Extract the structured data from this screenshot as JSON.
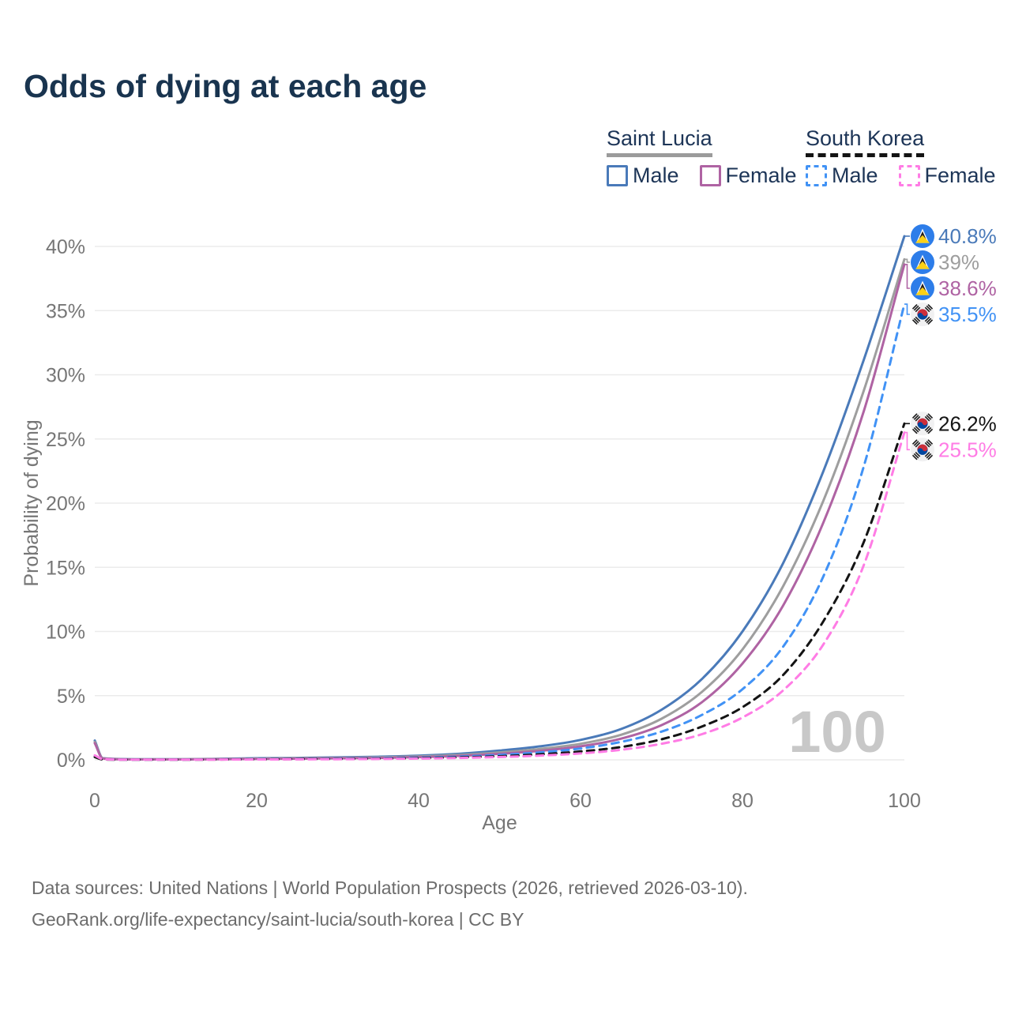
{
  "title": "Odds of dying at each age",
  "legend": {
    "groups": [
      {
        "label": "Saint Lucia",
        "line_style": "solid",
        "line_color": "#9b9b9b",
        "items": [
          {
            "label": "Male",
            "color": "#4a7ab9"
          },
          {
            "label": "Female",
            "color": "#af63a3"
          }
        ]
      },
      {
        "label": "South Korea",
        "line_style": "dashed",
        "line_color": "#141414",
        "items": [
          {
            "label": "Male",
            "color": "#4192f5"
          },
          {
            "label": "Female",
            "color": "#ff7ce5"
          }
        ]
      }
    ]
  },
  "chart_data": {
    "type": "line",
    "title": "Odds of dying at each age",
    "xlabel": "Age",
    "ylabel": "Probability of dying",
    "xlim": [
      0,
      100
    ],
    "ylim_percent": [
      0,
      40
    ],
    "x_ticks": [
      0,
      20,
      40,
      60,
      80,
      100
    ],
    "y_ticks_percent": [
      0,
      5,
      10,
      15,
      20,
      25,
      30,
      35,
      40
    ],
    "y_tick_labels": [
      "0%",
      "5%",
      "10%",
      "15%",
      "20%",
      "25%",
      "30%",
      "35%",
      "40%"
    ],
    "grid": "horizontal",
    "legend_position": "top-right",
    "watermark": "100",
    "series": [
      {
        "name": "Saint Lucia Male",
        "country": "Saint Lucia",
        "sex": "male",
        "color": "#4a7ab9",
        "dash": false,
        "flag": "saint-lucia",
        "end_label": "40.8%",
        "points": [
          [
            0,
            1.5
          ],
          [
            1,
            0.12
          ],
          [
            5,
            0.05
          ],
          [
            10,
            0.05
          ],
          [
            15,
            0.08
          ],
          [
            20,
            0.12
          ],
          [
            25,
            0.15
          ],
          [
            30,
            0.19
          ],
          [
            35,
            0.24
          ],
          [
            40,
            0.32
          ],
          [
            45,
            0.47
          ],
          [
            50,
            0.72
          ],
          [
            55,
            1.05
          ],
          [
            60,
            1.55
          ],
          [
            65,
            2.4
          ],
          [
            70,
            3.9
          ],
          [
            75,
            6.3
          ],
          [
            80,
            10.0
          ],
          [
            85,
            15.3
          ],
          [
            90,
            22.5
          ],
          [
            95,
            31.2
          ],
          [
            100,
            40.8
          ]
        ]
      },
      {
        "name": "Saint Lucia Both sexes",
        "country": "Saint Lucia",
        "sex": "both",
        "color": "#9e9e9e",
        "dash": false,
        "flag": "saint-lucia",
        "end_label": "39%",
        "points": [
          [
            0,
            1.4
          ],
          [
            1,
            0.11
          ],
          [
            5,
            0.04
          ],
          [
            10,
            0.04
          ],
          [
            15,
            0.06
          ],
          [
            20,
            0.09
          ],
          [
            25,
            0.12
          ],
          [
            30,
            0.15
          ],
          [
            35,
            0.19
          ],
          [
            40,
            0.26
          ],
          [
            45,
            0.38
          ],
          [
            50,
            0.58
          ],
          [
            55,
            0.85
          ],
          [
            60,
            1.25
          ],
          [
            65,
            1.95
          ],
          [
            70,
            3.2
          ],
          [
            75,
            5.3
          ],
          [
            80,
            8.6
          ],
          [
            85,
            13.5
          ],
          [
            90,
            20.2
          ],
          [
            95,
            28.8
          ],
          [
            100,
            39.0
          ]
        ]
      },
      {
        "name": "Saint Lucia Female",
        "country": "Saint Lucia",
        "sex": "female",
        "color": "#af63a3",
        "dash": false,
        "flag": "saint-lucia",
        "end_label": "38.6%",
        "points": [
          [
            0,
            1.3
          ],
          [
            1,
            0.1
          ],
          [
            5,
            0.03
          ],
          [
            10,
            0.03
          ],
          [
            15,
            0.05
          ],
          [
            20,
            0.07
          ],
          [
            25,
            0.09
          ],
          [
            30,
            0.12
          ],
          [
            35,
            0.15
          ],
          [
            40,
            0.21
          ],
          [
            45,
            0.31
          ],
          [
            50,
            0.47
          ],
          [
            55,
            0.7
          ],
          [
            60,
            1.05
          ],
          [
            65,
            1.65
          ],
          [
            70,
            2.7
          ],
          [
            75,
            4.5
          ],
          [
            80,
            7.5
          ],
          [
            85,
            12.0
          ],
          [
            90,
            18.5
          ],
          [
            95,
            27.2
          ],
          [
            100,
            38.6
          ]
        ]
      },
      {
        "name": "South Korea Male",
        "country": "South Korea",
        "sex": "male",
        "color": "#4192f5",
        "dash": true,
        "flag": "south-korea",
        "end_label": "35.5%",
        "points": [
          [
            0,
            0.25
          ],
          [
            1,
            0.04
          ],
          [
            5,
            0.02
          ],
          [
            10,
            0.02
          ],
          [
            15,
            0.03
          ],
          [
            20,
            0.05
          ],
          [
            25,
            0.07
          ],
          [
            30,
            0.09
          ],
          [
            35,
            0.12
          ],
          [
            40,
            0.17
          ],
          [
            45,
            0.25
          ],
          [
            50,
            0.38
          ],
          [
            55,
            0.58
          ],
          [
            60,
            0.88
          ],
          [
            65,
            1.4
          ],
          [
            70,
            2.2
          ],
          [
            75,
            3.5
          ],
          [
            80,
            5.5
          ],
          [
            85,
            8.8
          ],
          [
            90,
            14.3
          ],
          [
            95,
            22.9
          ],
          [
            100,
            35.5
          ]
        ]
      },
      {
        "name": "South Korea Both sexes",
        "country": "South Korea",
        "sex": "both",
        "color": "#141414",
        "dash": true,
        "flag": "south-korea",
        "end_label": "26.2%",
        "points": [
          [
            0,
            0.22
          ],
          [
            1,
            0.03
          ],
          [
            5,
            0.015
          ],
          [
            10,
            0.015
          ],
          [
            15,
            0.025
          ],
          [
            20,
            0.04
          ],
          [
            25,
            0.055
          ],
          [
            30,
            0.07
          ],
          [
            35,
            0.09
          ],
          [
            40,
            0.13
          ],
          [
            45,
            0.19
          ],
          [
            50,
            0.28
          ],
          [
            55,
            0.43
          ],
          [
            60,
            0.65
          ],
          [
            65,
            1.0
          ],
          [
            70,
            1.6
          ],
          [
            75,
            2.6
          ],
          [
            80,
            4.1
          ],
          [
            85,
            6.6
          ],
          [
            90,
            10.8
          ],
          [
            95,
            17.0
          ],
          [
            100,
            26.2
          ]
        ]
      },
      {
        "name": "South Korea Female",
        "country": "South Korea",
        "sex": "female",
        "color": "#ff7ce5",
        "dash": true,
        "flag": "south-korea",
        "end_label": "25.5%",
        "points": [
          [
            0,
            0.35
          ],
          [
            1,
            0.05
          ],
          [
            5,
            0.01
          ],
          [
            10,
            0.01
          ],
          [
            15,
            0.02
          ],
          [
            20,
            0.03
          ],
          [
            25,
            0.04
          ],
          [
            30,
            0.05
          ],
          [
            35,
            0.07
          ],
          [
            40,
            0.1
          ],
          [
            45,
            0.15
          ],
          [
            50,
            0.22
          ],
          [
            55,
            0.33
          ],
          [
            60,
            0.5
          ],
          [
            65,
            0.78
          ],
          [
            70,
            1.25
          ],
          [
            75,
            2.0
          ],
          [
            80,
            3.3
          ],
          [
            85,
            5.4
          ],
          [
            90,
            9.0
          ],
          [
            95,
            15.2
          ],
          [
            100,
            25.5
          ]
        ]
      }
    ]
  },
  "footer": {
    "line1": "Data sources: United Nations | World Population Prospects (2026, retrieved 2026-03-10).",
    "line2": "GeoRank.org/life-expectancy/saint-lucia/south-korea | CC BY"
  }
}
